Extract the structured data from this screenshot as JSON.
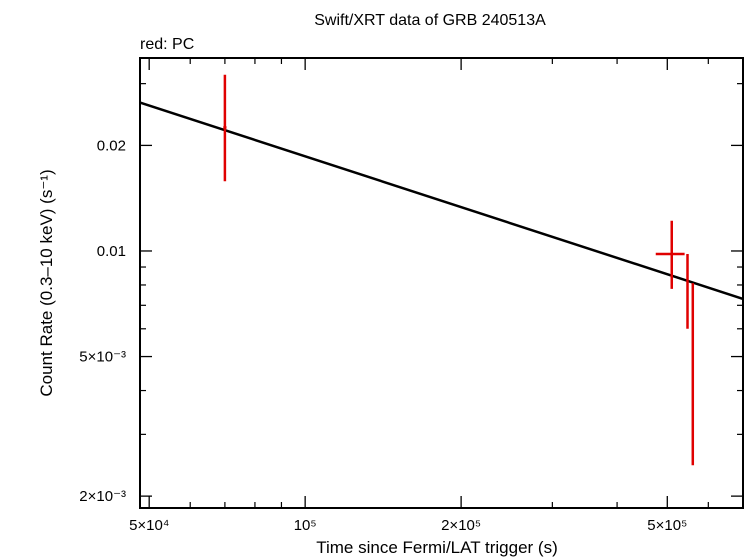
{
  "chart_data": {
    "type": "scatter",
    "title": "Swift/XRT data of GRB 240513A",
    "subtitle": "red: PC",
    "xlabel": "Time since Fermi/LAT trigger (s)",
    "ylabel": "Count Rate (0.3–10 keV) (s⁻¹)",
    "x_scale": "log",
    "y_scale": "log",
    "xlim": [
      48000,
      700000
    ],
    "ylim": [
      0.00185,
      0.0355
    ],
    "grid": false,
    "x_ticks": [
      {
        "value": 50000,
        "label": "5×10⁴"
      },
      {
        "value": 100000,
        "label": "10⁵"
      },
      {
        "value": 200000,
        "label": "2×10⁵"
      },
      {
        "value": 500000,
        "label": "5×10⁵"
      }
    ],
    "y_ticks": [
      {
        "value": 0.002,
        "label": "2×10⁻³"
      },
      {
        "value": 0.005,
        "label": "5×10⁻³"
      },
      {
        "value": 0.01,
        "label": "0.01"
      },
      {
        "value": 0.02,
        "label": "0.02"
      }
    ],
    "series": [
      {
        "mode": "PC",
        "color": "#e00000",
        "points": [
          {
            "x": 70000,
            "y": 0.0225,
            "x_err": [
              69500,
              70500
            ],
            "y_err": [
              0.0158,
              0.0318
            ]
          },
          {
            "x": 510000,
            "y": 0.0098,
            "x_err": [
              475000,
              540000
            ],
            "y_err": [
              0.0078,
              0.0122
            ]
          },
          {
            "x": 547000,
            "y": 0.0078,
            "x_err": [
              545000,
              549000
            ],
            "y_err": [
              0.006,
              0.0098
            ]
          },
          {
            "x": 560000,
            "y": 0.0077,
            "x_err": [
              558000,
              562000
            ],
            "y_err": [
              0.00245,
              0.0081
            ]
          }
        ]
      }
    ],
    "model": {
      "type": "powerlaw",
      "color": "#000000",
      "points": [
        {
          "x": 48000,
          "y": 0.0265
        },
        {
          "x": 700000,
          "y": 0.0073
        }
      ]
    }
  }
}
